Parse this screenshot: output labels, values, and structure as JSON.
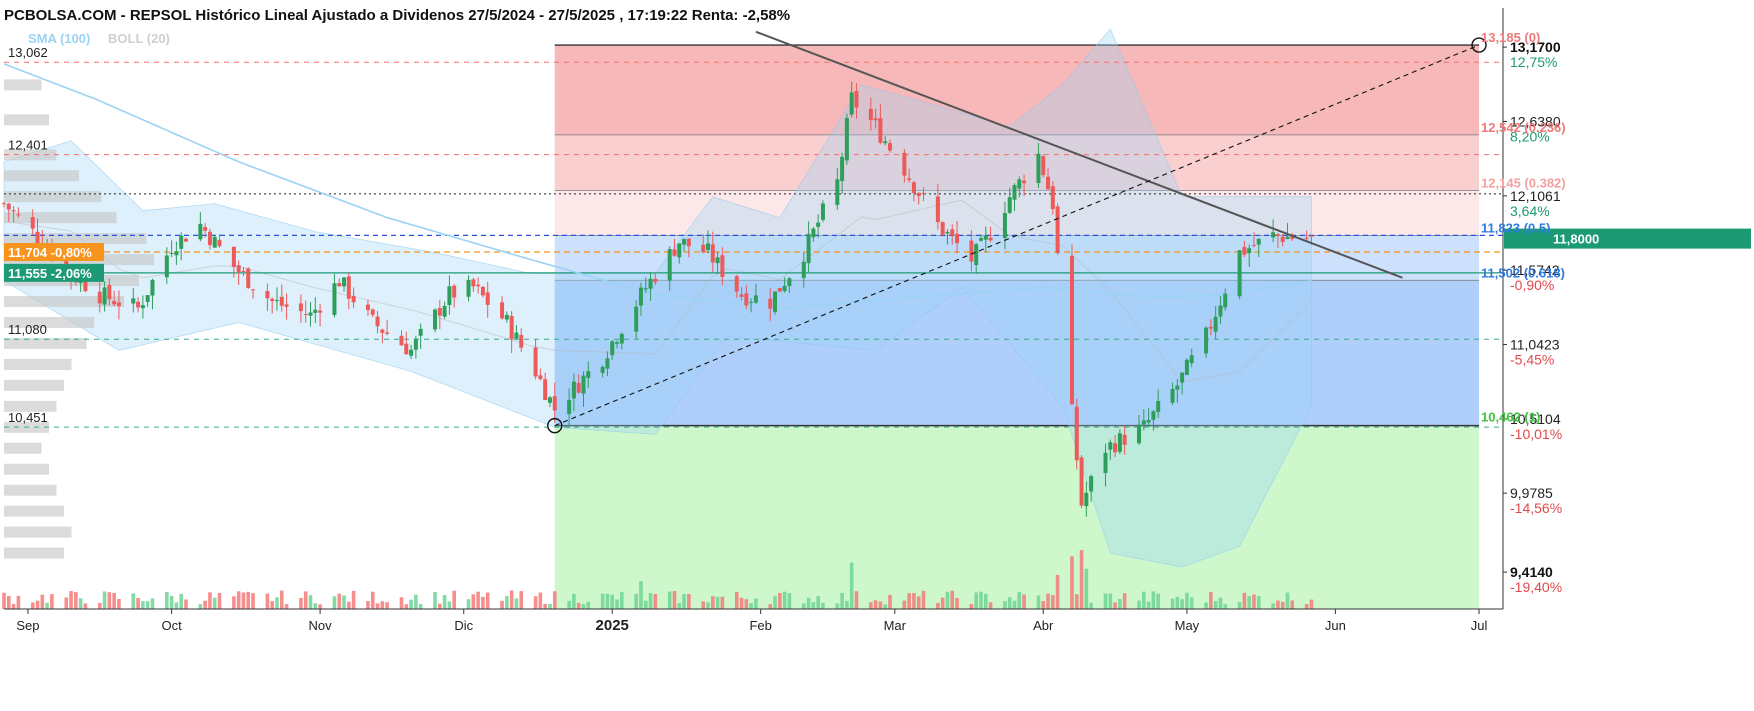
{
  "header": {
    "title": "PCBOLSA.COM - REPSOL Histórico Lineal Ajustado a Dividenos 27/5/2024 - 27/5/2025 , 17:19:22 Renta: -2,58%",
    "indicator_sma": "SMA (100)",
    "indicator_boll": "BOLL (20)"
  },
  "colors": {
    "up": "#2e9e5b",
    "down": "#ec5a5a",
    "sma": "#9ad3f5",
    "fib_red": "#f08c8c",
    "fib_blue": "#6fa6f5",
    "fib_green": "#9df29a",
    "ref_orange": "#f7941d",
    "ref_teal": "#1b9a73"
  },
  "chart_data": {
    "type": "candlestick",
    "x_start": "2024-08-27",
    "x_end": "2025-07-06",
    "data_end": "2025-05-27",
    "ylim": [
      9.15,
      13.45
    ],
    "x_ticks": [
      {
        "label": "Sep",
        "date": "2024-09-01"
      },
      {
        "label": "Oct",
        "date": "2024-10-01"
      },
      {
        "label": "Nov",
        "date": "2024-11-01"
      },
      {
        "label": "Dic",
        "date": "2024-12-01"
      },
      {
        "label": "2025",
        "date": "2025-01-01",
        "bold": true
      },
      {
        "label": "Feb",
        "date": "2025-02-01"
      },
      {
        "label": "Mar",
        "date": "2025-03-01"
      },
      {
        "label": "Abr",
        "date": "2025-04-01"
      },
      {
        "label": "May",
        "date": "2025-05-01"
      },
      {
        "label": "Jun",
        "date": "2025-06-01"
      },
      {
        "label": "Jul",
        "date": "2025-07-01"
      }
    ],
    "right_axis": [
      {
        "value": 13.17,
        "label": "13,1700",
        "pct": "12,75%",
        "pct_color": "#1b9a73",
        "bold": true
      },
      {
        "value": 12.638,
        "label": "12,6380",
        "pct": "8,20%",
        "pct_color": "#1b9a73"
      },
      {
        "value": 12.1061,
        "label": "12,1061",
        "pct": "3,64%",
        "pct_color": "#1b9a73"
      },
      {
        "value": 11.5742,
        "label": "11,5742",
        "pct": "-0,90%",
        "pct_color": "#e24a4a"
      },
      {
        "value": 11.0423,
        "label": "11,0423",
        "pct": "-5,45%",
        "pct_color": "#e24a4a"
      },
      {
        "value": 10.5104,
        "label": "10,5104",
        "pct": "-10,01%",
        "pct_color": "#e24a4a"
      },
      {
        "value": 9.9785,
        "label": "9,9785",
        "pct": "-14,56%",
        "pct_color": "#e24a4a"
      },
      {
        "value": 9.414,
        "label": "9,4140",
        "pct": "-19,40%",
        "pct_color": "#e24a4a",
        "bold": true
      }
    ],
    "current_price": {
      "value": 11.8,
      "label": "11,8000"
    },
    "left_levels": [
      {
        "value": 13.062,
        "label": "13,062",
        "color": "#f07070"
      },
      {
        "value": 12.401,
        "label": "12,401",
        "color": "#f07070"
      },
      {
        "value": 11.08,
        "label": "11,080",
        "color": "#3aa98a"
      },
      {
        "value": 10.451,
        "label": "10,451",
        "color": "#3aa98a"
      }
    ],
    "ref_tags": [
      {
        "value": 11.704,
        "label": "11,704 -0,80%",
        "color": "#f7941d"
      },
      {
        "value": 11.555,
        "label": "11,555 -2,06%",
        "color": "#1b9a73"
      }
    ],
    "blue_dash_level": 11.823,
    "black_dot_level": 12.12,
    "fibonacci": {
      "start_date": "2024-12-20",
      "end_date": "2025-07-01",
      "low": 10.462,
      "high": 13.185,
      "levels": [
        {
          "value": 13.185,
          "label": "13,185 (0)",
          "color": "#f07878"
        },
        {
          "value": 12.542,
          "label": "12,542 (0.236)",
          "color": "#f07878"
        },
        {
          "value": 12.145,
          "label": "12,145 (0.382)",
          "color": "#f5a0a0"
        },
        {
          "value": 11.823,
          "label": "11,823 (0.5)",
          "color": "#2e7be0"
        },
        {
          "value": 11.502,
          "label": "11,502 (0.618)",
          "color": "#2e7be0"
        },
        {
          "value": 10.462,
          "label": "10,462 (1)",
          "color": "#3ec23e"
        }
      ]
    },
    "trendlines": [
      {
        "style": "solid",
        "from": [
          "2025-01-31",
          13.28
        ],
        "to": [
          "2025-06-15",
          11.52
        ]
      },
      {
        "style": "dashed",
        "from": [
          "2024-12-20",
          10.462
        ],
        "to": [
          "2025-07-01",
          13.185
        ]
      }
    ],
    "price_anchors": [
      [
        "2024-08-27",
        12.05
      ],
      [
        "2024-09-04",
        11.78
      ],
      [
        "2024-09-10",
        11.55
      ],
      [
        "2024-09-16",
        11.4
      ],
      [
        "2024-09-24",
        11.3
      ],
      [
        "2024-10-01",
        11.75
      ],
      [
        "2024-10-07",
        11.9
      ],
      [
        "2024-10-14",
        11.6
      ],
      [
        "2024-10-22",
        11.35
      ],
      [
        "2024-10-30",
        11.25
      ],
      [
        "2024-11-05",
        11.5
      ],
      [
        "2024-11-12",
        11.2
      ],
      [
        "2024-11-20",
        11.0
      ],
      [
        "2024-11-28",
        11.4
      ],
      [
        "2024-12-03",
        11.45
      ],
      [
        "2024-12-10",
        11.2
      ],
      [
        "2024-12-16",
        10.85
      ],
      [
        "2024-12-20",
        10.58
      ],
      [
        "2024-12-30",
        10.95
      ],
      [
        "2025-01-08",
        11.45
      ],
      [
        "2025-01-15",
        11.78
      ],
      [
        "2025-01-21",
        11.7
      ],
      [
        "2025-01-28",
        11.4
      ],
      [
        "2025-02-03",
        11.35
      ],
      [
        "2025-02-10",
        11.7
      ],
      [
        "2025-02-17",
        12.2
      ],
      [
        "2025-02-20",
        12.8
      ],
      [
        "2025-02-25",
        12.6
      ],
      [
        "2025-03-03",
        12.3
      ],
      [
        "2025-03-10",
        11.9
      ],
      [
        "2025-03-17",
        11.65
      ],
      [
        "2025-03-20",
        11.78
      ],
      [
        "2025-03-25",
        12.1
      ],
      [
        "2025-03-31",
        12.4
      ],
      [
        "2025-04-03",
        12.05
      ],
      [
        "2025-04-07",
        10.55
      ],
      [
        "2025-04-09",
        9.9
      ],
      [
        "2025-04-14",
        10.3
      ],
      [
        "2025-04-22",
        10.45
      ],
      [
        "2025-04-29",
        10.75
      ],
      [
        "2025-05-05",
        11.1
      ],
      [
        "2025-05-12",
        11.7
      ],
      [
        "2025-05-19",
        11.82
      ],
      [
        "2025-05-27",
        11.8
      ]
    ],
    "sma_100": [
      [
        "2024-08-27",
        13.05
      ],
      [
        "2024-09-15",
        12.8
      ],
      [
        "2024-10-15",
        12.35
      ],
      [
        "2024-11-15",
        11.95
      ],
      [
        "2024-12-15",
        11.65
      ],
      [
        "2025-01-10",
        11.4
      ],
      [
        "2025-02-05",
        11.3
      ],
      [
        "2025-03-05",
        11.38
      ],
      [
        "2025-04-01",
        11.45
      ],
      [
        "2025-04-25",
        11.38
      ],
      [
        "2025-05-10",
        11.4
      ],
      [
        "2025-05-27",
        11.5
      ]
    ],
    "bollinger_upper": [
      [
        "2024-08-27",
        12.35
      ],
      [
        "2024-09-10",
        12.5
      ],
      [
        "2024-09-25",
        12.0
      ],
      [
        "2024-10-10",
        12.05
      ],
      [
        "2024-10-31",
        11.85
      ],
      [
        "2024-11-25",
        11.7
      ],
      [
        "2024-12-15",
        11.55
      ],
      [
        "2025-01-10",
        11.55
      ],
      [
        "2025-01-22",
        12.1
      ],
      [
        "2025-02-05",
        11.95
      ],
      [
        "2025-02-22",
        12.9
      ],
      [
        "2025-03-10",
        12.75
      ],
      [
        "2025-03-25",
        12.6
      ],
      [
        "2025-04-05",
        12.9
      ],
      [
        "2025-04-15",
        13.3
      ],
      [
        "2025-04-30",
        12.1
      ],
      [
        "2025-05-15",
        12.1
      ],
      [
        "2025-05-27",
        12.1
      ]
    ],
    "bollinger_lower": [
      [
        "2024-08-27",
        11.5
      ],
      [
        "2024-09-20",
        11.0
      ],
      [
        "2024-10-15",
        11.2
      ],
      [
        "2024-11-20",
        10.85
      ],
      [
        "2024-12-20",
        10.45
      ],
      [
        "2025-01-10",
        10.4
      ],
      [
        "2025-01-25",
        11.1
      ],
      [
        "2025-02-10",
        11.05
      ],
      [
        "2025-02-25",
        11.0
      ],
      [
        "2025-03-15",
        11.45
      ],
      [
        "2025-04-05",
        10.6
      ],
      [
        "2025-04-15",
        9.55
      ],
      [
        "2025-04-30",
        9.45
      ],
      [
        "2025-05-12",
        9.6
      ],
      [
        "2025-05-27",
        10.6
      ]
    ],
    "volume_profile": [
      {
        "price": 12.9,
        "volume": 0.25
      },
      {
        "price": 12.65,
        "volume": 0.3
      },
      {
        "price": 12.4,
        "volume": 0.35
      },
      {
        "price": 12.25,
        "volume": 0.5
      },
      {
        "price": 12.1,
        "volume": 0.65
      },
      {
        "price": 11.95,
        "volume": 0.75
      },
      {
        "price": 11.8,
        "volume": 0.95
      },
      {
        "price": 11.65,
        "volume": 1.0
      },
      {
        "price": 11.5,
        "volume": 0.9
      },
      {
        "price": 11.35,
        "volume": 0.8
      },
      {
        "price": 11.2,
        "volume": 0.6
      },
      {
        "price": 11.05,
        "volume": 0.55
      },
      {
        "price": 10.9,
        "volume": 0.45
      },
      {
        "price": 10.75,
        "volume": 0.4
      },
      {
        "price": 10.6,
        "volume": 0.35
      },
      {
        "price": 10.45,
        "volume": 0.3
      },
      {
        "price": 10.3,
        "volume": 0.25
      },
      {
        "price": 10.15,
        "volume": 0.3
      },
      {
        "price": 10.0,
        "volume": 0.35
      },
      {
        "price": 9.85,
        "volume": 0.4
      },
      {
        "price": 9.7,
        "volume": 0.45
      },
      {
        "price": 9.55,
        "volume": 0.4
      }
    ],
    "volume_spikes": [
      {
        "date": "2025-02-20",
        "volume": 3.0
      },
      {
        "date": "2025-04-04",
        "volume": 2.2
      },
      {
        "date": "2025-04-07",
        "volume": 3.4
      },
      {
        "date": "2025-04-09",
        "volume": 3.8
      },
      {
        "date": "2025-04-10",
        "volume": 2.6
      },
      {
        "date": "2025-01-07",
        "volume": 1.8
      }
    ]
  }
}
